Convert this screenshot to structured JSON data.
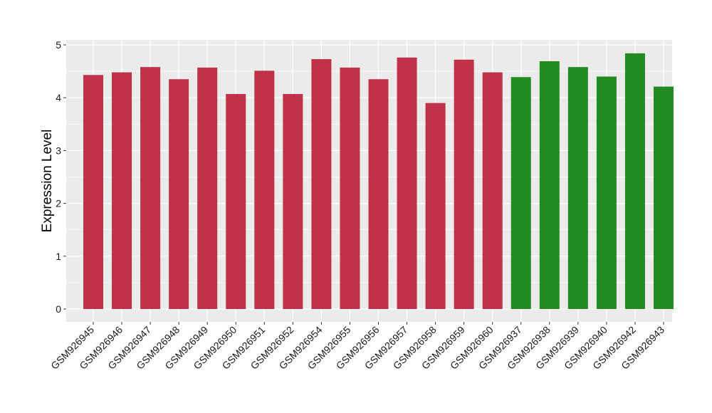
{
  "chart_data": {
    "type": "bar",
    "title": "",
    "xlabel": "",
    "ylabel": "Expression Level",
    "ylim": [
      0,
      5
    ],
    "yticks": [
      0,
      1,
      2,
      3,
      4,
      5
    ],
    "grid": true,
    "legend": "none",
    "categories": [
      "GSM926945",
      "GSM926946",
      "GSM926947",
      "GSM926948",
      "GSM926949",
      "GSM926950",
      "GSM926951",
      "GSM926952",
      "GSM926954",
      "GSM926955",
      "GSM926956",
      "GSM926957",
      "GSM926958",
      "GSM926959",
      "GSM926960",
      "GSM926937",
      "GSM926938",
      "GSM926939",
      "GSM926940",
      "GSM926942",
      "GSM926943"
    ],
    "values": [
      4.43,
      4.48,
      4.58,
      4.35,
      4.57,
      4.07,
      4.51,
      4.07,
      4.73,
      4.57,
      4.35,
      4.76,
      3.9,
      4.72,
      4.48,
      4.39,
      4.69,
      4.58,
      4.4,
      4.84,
      4.21
    ],
    "bar_colors": [
      "#c0314a",
      "#c0314a",
      "#c0314a",
      "#c0314a",
      "#c0314a",
      "#c0314a",
      "#c0314a",
      "#c0314a",
      "#c0314a",
      "#c0314a",
      "#c0314a",
      "#c0314a",
      "#c0314a",
      "#c0314a",
      "#c0314a",
      "#228b22",
      "#228b22",
      "#228b22",
      "#228b22",
      "#228b22",
      "#228b22"
    ],
    "panel_background": "#ebebeb",
    "grid_color": "#ffffff"
  }
}
